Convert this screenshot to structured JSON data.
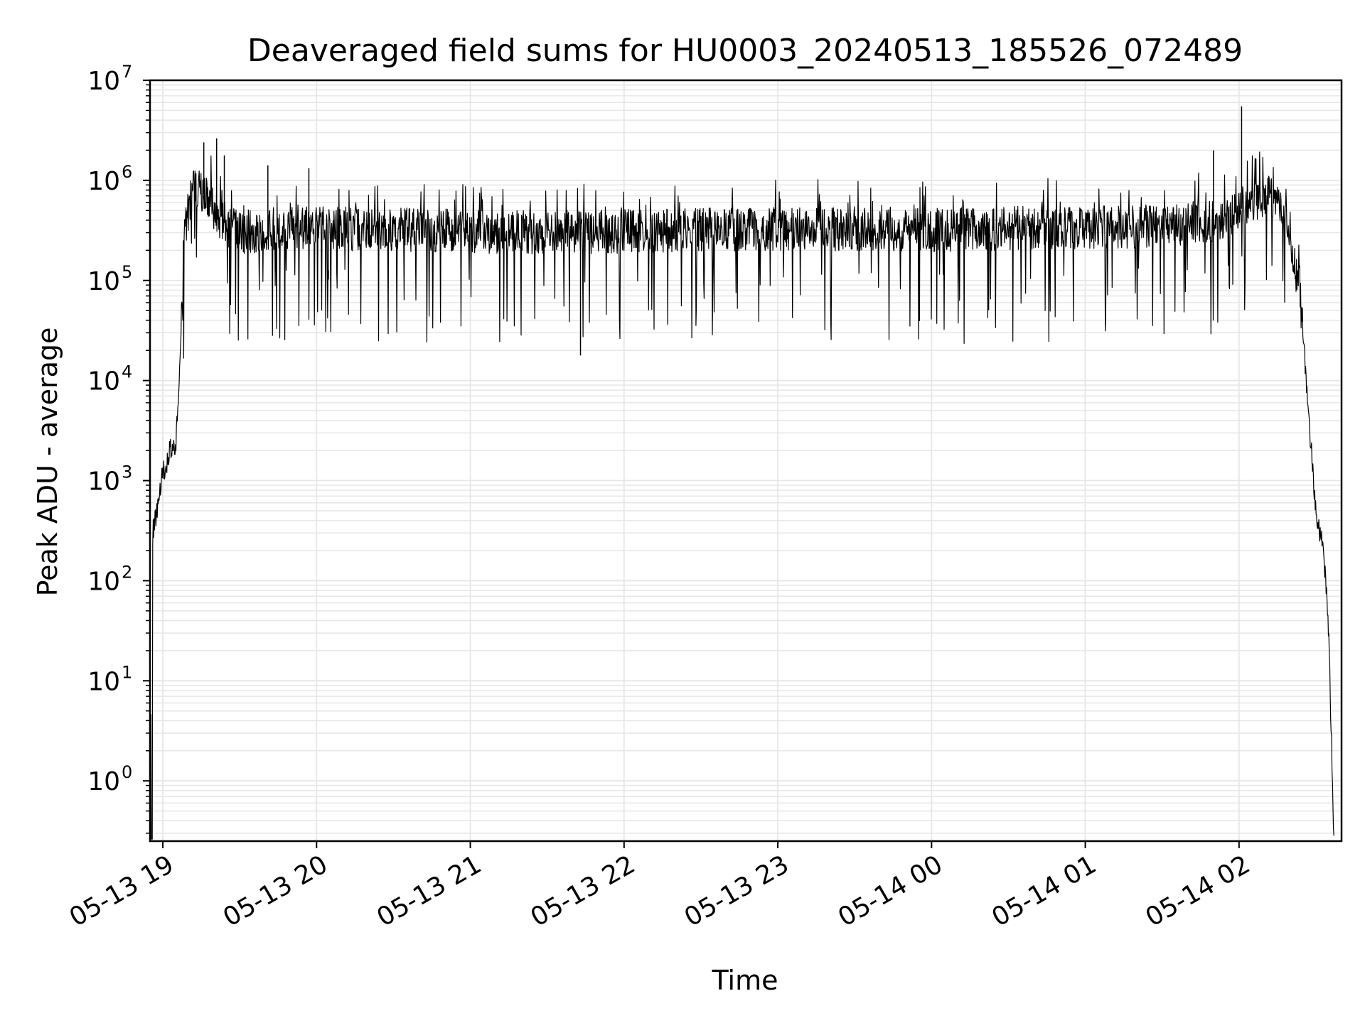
{
  "chart_data": {
    "type": "line",
    "title": "Deaveraged field sums for HU0003_20240513_185526_072489",
    "xlabel": "Time",
    "ylabel": "Peak ADU - average",
    "yscale": "log",
    "ylim": [
      0.25,
      10000000
    ],
    "xlim": [
      "2024-05-13 18:55",
      "2024-05-14 02:40"
    ],
    "grid": true,
    "x_tick_labels": [
      "05-13 19",
      "05-13 20",
      "05-13 21",
      "05-13 22",
      "05-13 23",
      "05-14 00",
      "05-14 01",
      "05-14 02"
    ],
    "x_tick_values": [
      "2024-05-13 19:00",
      "2024-05-13 20:00",
      "2024-05-13 21:00",
      "2024-05-13 22:00",
      "2024-05-13 23:00",
      "2024-05-14 00:00",
      "2024-05-14 01:00",
      "2024-05-14 02:00"
    ],
    "y_tick_values": [
      1,
      10,
      100,
      1000,
      10000,
      100000,
      1000000,
      10000000
    ],
    "y_tick_labels": [
      {
        "base": "10",
        "exp": "0"
      },
      {
        "base": "10",
        "exp": "1"
      },
      {
        "base": "10",
        "exp": "2"
      },
      {
        "base": "10",
        "exp": "3"
      },
      {
        "base": "10",
        "exp": "4"
      },
      {
        "base": "10",
        "exp": "5"
      },
      {
        "base": "10",
        "exp": "6"
      },
      {
        "base": "10",
        "exp": "7"
      }
    ],
    "series_color": "#000000",
    "grid_color": "#e6e6e6",
    "series": [
      {
        "x": [
          "2024-05-13 18:55",
          "2024-05-13 18:56",
          "2024-05-13 18:58",
          "2024-05-13 19:00",
          "2024-05-13 19:03",
          "2024-05-13 19:05",
          "2024-05-13 19:07",
          "2024-05-13 19:08",
          "2024-05-13 19:10",
          "2024-05-13 19:12",
          "2024-05-13 19:15",
          "2024-05-13 19:20",
          "2024-05-13 19:25",
          "2024-05-13 19:30",
          "2024-05-13 19:40",
          "2024-05-13 20:00",
          "2024-05-13 20:30",
          "2024-05-13 21:00",
          "2024-05-13 21:30",
          "2024-05-13 22:00",
          "2024-05-13 22:30",
          "2024-05-13 23:00",
          "2024-05-13 23:30",
          "2024-05-14 00:00",
          "2024-05-14 00:30",
          "2024-05-14 01:00",
          "2024-05-14 01:30",
          "2024-05-14 01:50",
          "2024-05-14 02:00",
          "2024-05-14 02:08",
          "2024-05-14 02:12",
          "2024-05-14 02:16",
          "2024-05-14 02:20",
          "2024-05-14 02:24",
          "2024-05-14 02:27",
          "2024-05-14 02:30",
          "2024-05-14 02:33",
          "2024-05-14 02:35",
          "2024-05-14 02:37"
        ],
        "y": [
          0.3,
          300,
          500,
          1200,
          2000,
          2000,
          20000,
          200000,
          500000,
          900000,
          800000,
          500000,
          350000,
          300000,
          320000,
          330000,
          320000,
          310000,
          300000,
          310000,
          320000,
          320000,
          330000,
          320000,
          330000,
          340000,
          350000,
          400000,
          500000,
          700000,
          750000,
          600000,
          300000,
          60000,
          5000,
          500,
          200,
          30,
          0.3
        ]
      }
    ]
  }
}
